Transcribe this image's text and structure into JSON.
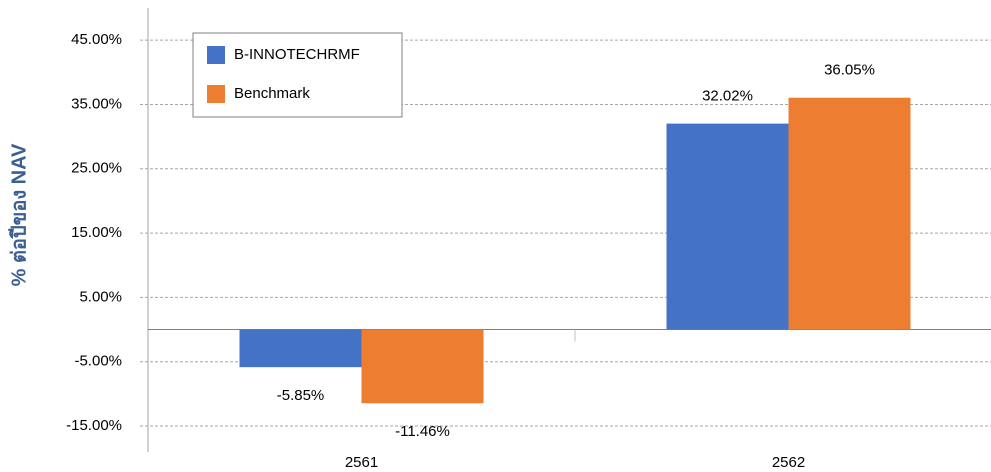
{
  "chart_data": {
    "type": "bar",
    "y_label": "% ต่อปีของ NAV",
    "categories": [
      "2561",
      "2562"
    ],
    "series": [
      {
        "name": "B-INNOTECHRMF",
        "color": "#4472c4",
        "values": [
          -5.85,
          32.02
        ],
        "value_labels": [
          "-5.85%",
          "32.02%"
        ]
      },
      {
        "name": "Benchmark",
        "color": "#ed7d31",
        "values": [
          -11.46,
          36.05
        ],
        "value_labels": [
          "-11.46%",
          "36.05%"
        ]
      }
    ],
    "ylim": [
      -15,
      50
    ],
    "yticks": [
      {
        "value": -15,
        "label": "-15.00%"
      },
      {
        "value": -5,
        "label": "-5.00%"
      },
      {
        "value": 5,
        "label": "5.00%"
      },
      {
        "value": 15,
        "label": "15.00%"
      },
      {
        "value": 25,
        "label": "25.00%"
      },
      {
        "value": 35,
        "label": "35.00%"
      },
      {
        "value": 45,
        "label": "45.00%"
      }
    ],
    "grid": true,
    "legend": "top-left"
  }
}
